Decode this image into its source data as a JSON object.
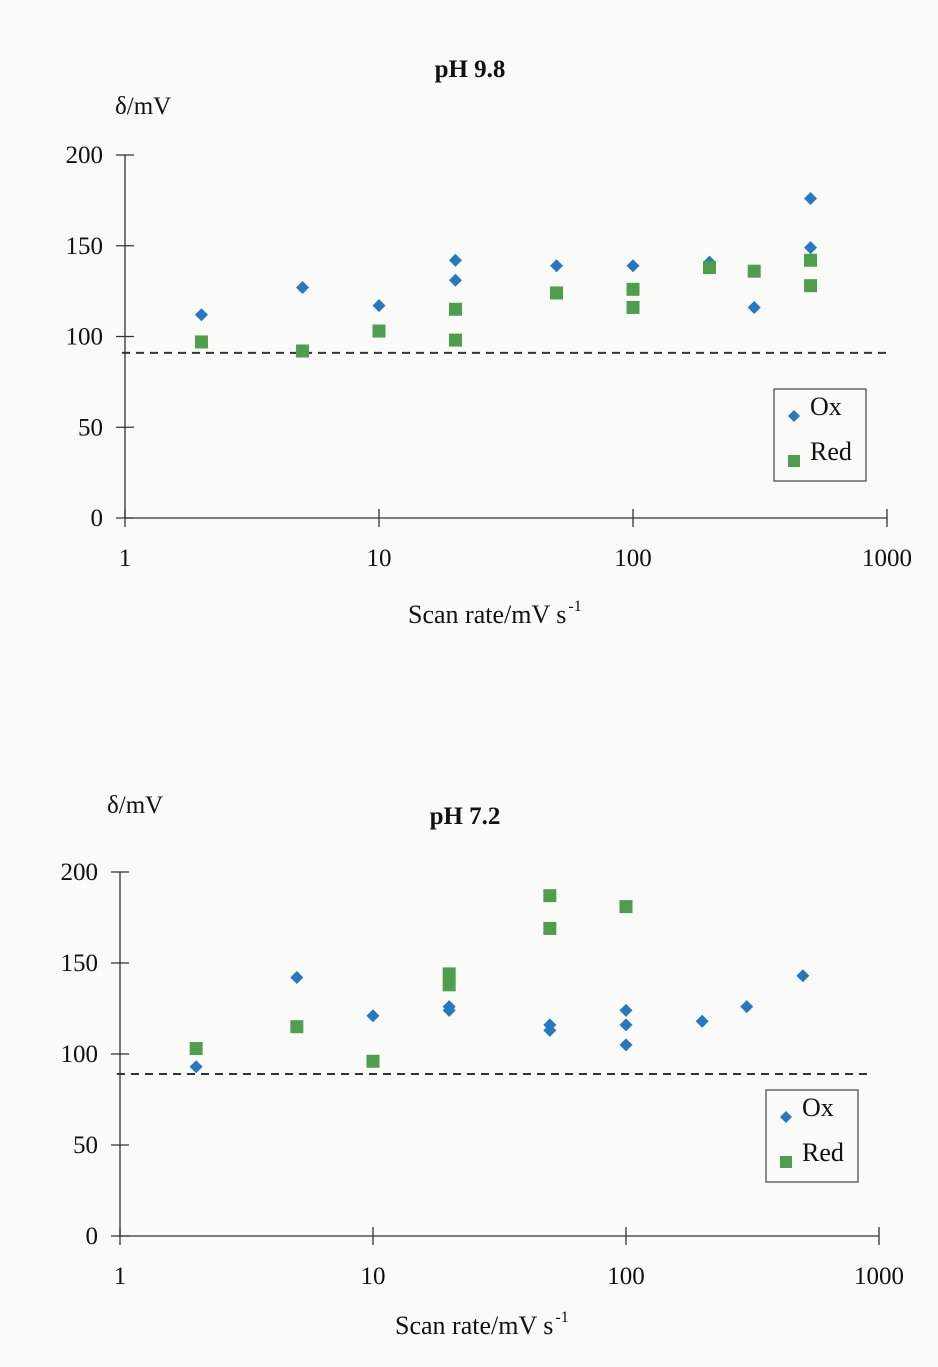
{
  "chart_data": [
    {
      "type": "scatter",
      "title": "pH 9.8",
      "ylabel": "δ/mV",
      "xlabel": "Scan rate/mV s",
      "xlabel_superscript": "-1",
      "x_scale": "log",
      "xlim": [
        1,
        1000
      ],
      "ylim": [
        0,
        200
      ],
      "x_ticks": [
        1,
        10,
        100,
        1000
      ],
      "x_tick_labels": [
        "1",
        "10",
        "100",
        "1000"
      ],
      "y_ticks": [
        0,
        50,
        100,
        150,
        200
      ],
      "y_tick_labels": [
        "0",
        "50",
        "100",
        "150",
        "200"
      ],
      "reference_line_y": 91,
      "grid": false,
      "legend": "right",
      "series": [
        {
          "name": "Ox",
          "marker": "diamond",
          "color": "#2479c1",
          "points": [
            [
              2,
              112
            ],
            [
              5,
              127
            ],
            [
              10,
              117
            ],
            [
              20,
              142
            ],
            [
              20,
              131
            ],
            [
              50,
              139
            ],
            [
              100,
              139
            ],
            [
              200,
              141
            ],
            [
              300,
              116
            ],
            [
              500,
              176
            ],
            [
              500,
              149
            ]
          ]
        },
        {
          "name": "Red",
          "marker": "square",
          "color": "#4e9e4e",
          "points": [
            [
              2,
              97
            ],
            [
              5,
              92
            ],
            [
              10,
              103
            ],
            [
              20,
              115
            ],
            [
              20,
              98
            ],
            [
              50,
              124
            ],
            [
              100,
              126
            ],
            [
              100,
              116
            ],
            [
              200,
              138
            ],
            [
              300,
              136
            ],
            [
              500,
              142
            ],
            [
              500,
              128
            ]
          ]
        }
      ]
    },
    {
      "type": "scatter",
      "title": "pH 7.2",
      "ylabel": "δ/mV",
      "xlabel": "Scan rate/mV s",
      "xlabel_superscript": "-1",
      "x_scale": "log",
      "xlim": [
        1,
        1000
      ],
      "ylim": [
        0,
        200
      ],
      "x_ticks": [
        1,
        10,
        100,
        1000
      ],
      "x_tick_labels": [
        "1",
        "10",
        "100",
        "1000"
      ],
      "y_ticks": [
        0,
        50,
        100,
        150,
        200
      ],
      "y_tick_labels": [
        "0",
        "50",
        "100",
        "150",
        "200"
      ],
      "reference_line_y": 89,
      "grid": false,
      "legend": "right",
      "series": [
        {
          "name": "Ox",
          "marker": "diamond",
          "color": "#2479c1",
          "points": [
            [
              2,
              93
            ],
            [
              5,
              142
            ],
            [
              10,
              121
            ],
            [
              20,
              126
            ],
            [
              20,
              124
            ],
            [
              50,
              116
            ],
            [
              50,
              113
            ],
            [
              100,
              124
            ],
            [
              100,
              116
            ],
            [
              100,
              105
            ],
            [
              200,
              118
            ],
            [
              300,
              126
            ],
            [
              500,
              143
            ]
          ]
        },
        {
          "name": "Red",
          "marker": "square",
          "color": "#4e9e4e",
          "points": [
            [
              2,
              103
            ],
            [
              5,
              115
            ],
            [
              10,
              96
            ],
            [
              20,
              144
            ],
            [
              20,
              138
            ],
            [
              50,
              187
            ],
            [
              50,
              169
            ],
            [
              100,
              181
            ]
          ]
        }
      ]
    }
  ]
}
